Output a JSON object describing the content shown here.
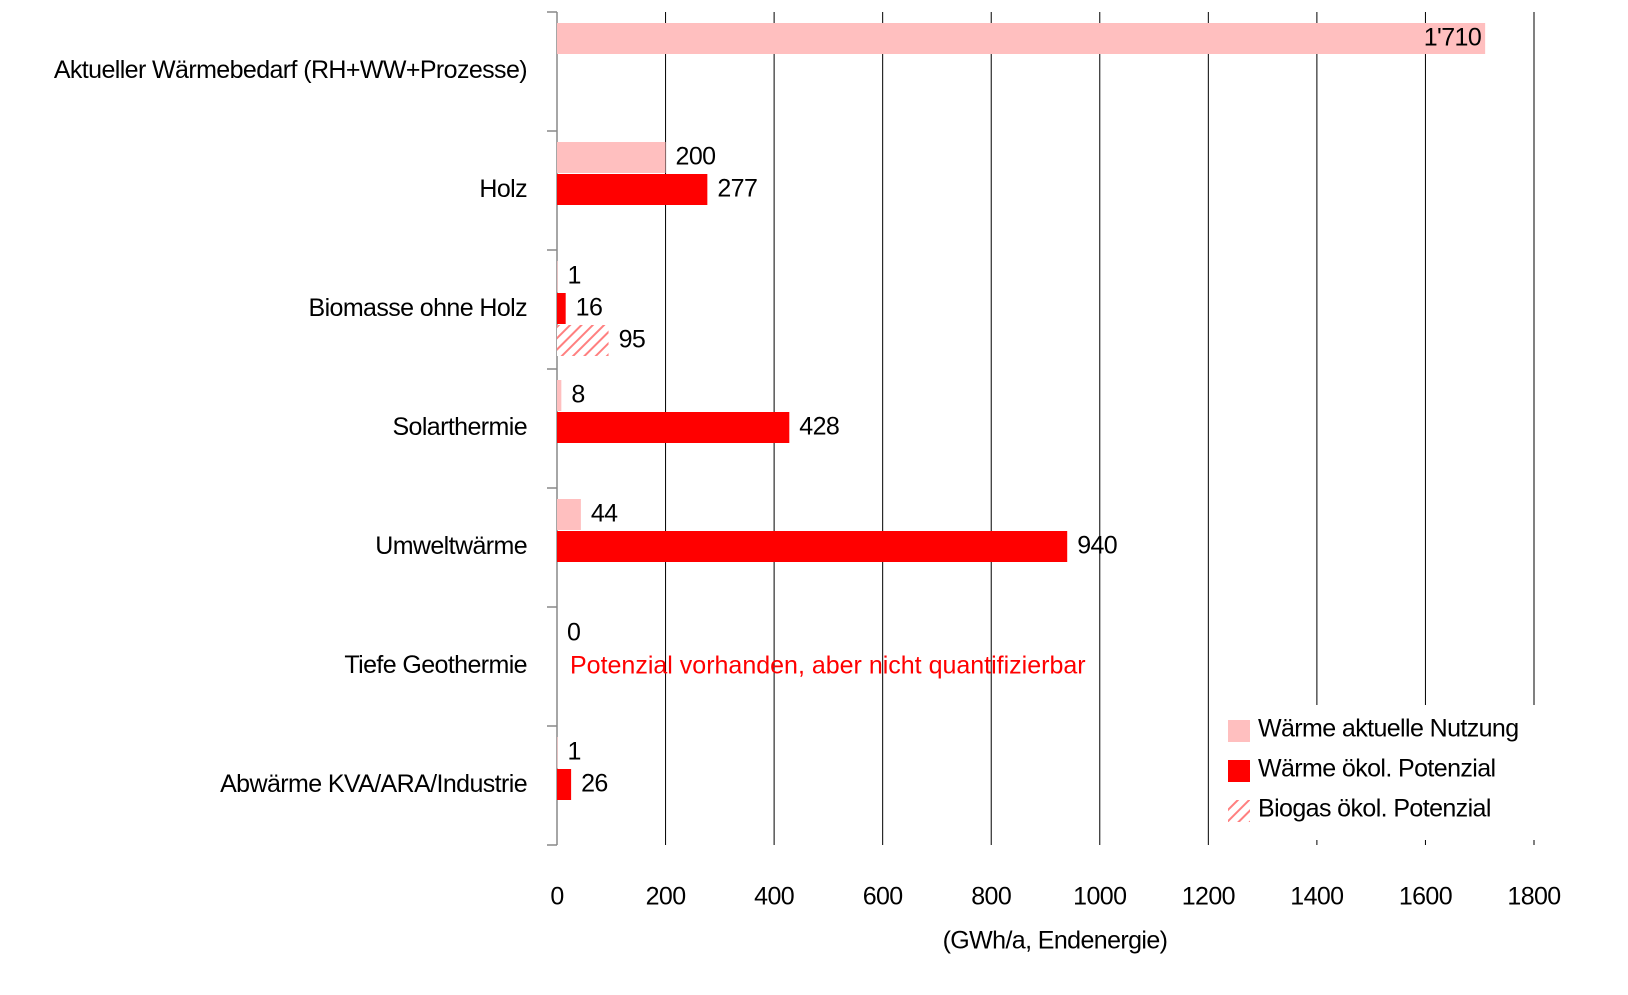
{
  "chart_data": {
    "type": "hbar",
    "xlabel": "(GWh/a, Endenergie)",
    "annotation": "Potenzial vorhanden, aber nicht quantifizierbar",
    "categories": [
      "Aktueller Wärmebedarf (RH+WW+Prozesse)",
      "Holz",
      "Biomasse ohne Holz",
      "Solarthermie",
      "Umweltwärme",
      "Tiefe Geothermie",
      "Abwärme KVA/ARA/Industrie"
    ],
    "series": [
      {
        "name": "Wärme aktuelle Nutzung",
        "color": "#ffbfbf",
        "values": [
          1710,
          200,
          1,
          8,
          44,
          0,
          1
        ],
        "value_labels": [
          "1'710",
          "200",
          "1",
          "8",
          "44",
          "0",
          "1"
        ]
      },
      {
        "name": "Wärme ökol. Potenzial",
        "color": "#ff0000",
        "values": [
          null,
          277,
          16,
          428,
          940,
          null,
          26
        ]
      },
      {
        "name": "Biogas ökol. Potenzial",
        "color": "#ff8080",
        "hatch": true,
        "values": [
          null,
          null,
          95,
          null,
          null,
          null,
          null
        ]
      }
    ],
    "xlim": [
      0,
      1800
    ],
    "xticks": [
      0,
      200,
      400,
      600,
      800,
      1000,
      1200,
      1400,
      1600,
      1800
    ],
    "grid": true,
    "legend": "lower right"
  }
}
